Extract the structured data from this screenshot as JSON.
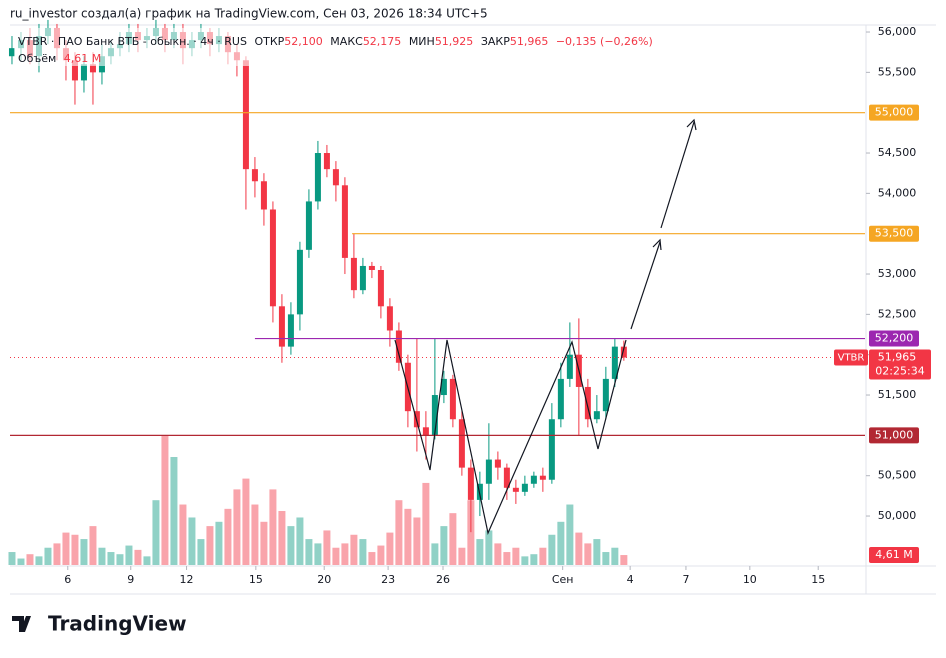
{
  "chart_data": {
    "type": "candlestick",
    "title": "ru_investor создал(а) график на TradingView.com, Сен 03, 2026 18:34 UTC+5",
    "legend": {
      "symbol": "VTBR · ПАО Банк ВТБ - обыкн. · 4ч · RUS",
      "fields": [
        {
          "name": "ОТКР",
          "value": "52,100"
        },
        {
          "name": "МАКС",
          "value": "52,175"
        },
        {
          "name": "МИН",
          "value": "51,925"
        },
        {
          "name": "ЗАКР",
          "value": "51,965"
        }
      ],
      "change": "−0,135 (−0,26%)",
      "volume_name": "Объём",
      "volume_value": "4,61 M"
    },
    "brand": "TradingView",
    "up_color": "#089981",
    "down_color": "#f23645",
    "xlim": [
      -0.22,
      94.8
    ],
    "xticks": [
      {
        "value": 6.2,
        "label": "6"
      },
      {
        "value": 13.2,
        "label": "9"
      },
      {
        "value": 19.4,
        "label": "12"
      },
      {
        "value": 27.1,
        "label": "15"
      },
      {
        "value": 34.7,
        "label": "20"
      },
      {
        "value": 41.8,
        "label": "23"
      },
      {
        "value": 47.9,
        "label": "26"
      },
      {
        "value": 61.2,
        "label": "Сен"
      },
      {
        "value": 68.7,
        "label": "4"
      },
      {
        "value": 74.9,
        "label": "7"
      },
      {
        "value": 82,
        "label": "10"
      },
      {
        "value": 89.6,
        "label": "15"
      }
    ],
    "ylim": [
      49393,
      56087
    ],
    "yticks": [
      {
        "value": 50000,
        "label": "50,000"
      },
      {
        "value": 50500,
        "label": "50,500"
      },
      {
        "value": 51500,
        "label": "51,500"
      },
      {
        "value": 52000,
        "label": "52,000"
      },
      {
        "value": 52500,
        "label": "52,500"
      },
      {
        "value": 53000,
        "label": "53,000"
      },
      {
        "value": 54000,
        "label": "54,000"
      },
      {
        "value": 54500,
        "label": "54,500"
      },
      {
        "value": 55500,
        "label": "55,500"
      },
      {
        "value": 56000,
        "label": "56,000"
      }
    ],
    "open": [
      55700,
      55800,
      55900,
      55700,
      55950,
      56050,
      55800,
      55650,
      55400,
      55600,
      55500,
      55700,
      55800,
      55850,
      56000,
      55900,
      55950,
      56050,
      55900,
      56000,
      55800,
      55900,
      56000,
      55850,
      55950,
      55750,
      55650,
      54300,
      54150,
      53800,
      52600,
      52100,
      52500,
      53300,
      53900,
      54500,
      54300,
      54100,
      53200,
      52800,
      53100,
      53050,
      52600,
      52300,
      51900,
      51300,
      51100,
      51000,
      51500,
      51700,
      51200,
      50600,
      50200,
      50400,
      50700,
      50600,
      50350,
      50300,
      50400,
      50500,
      50450,
      51200,
      51700,
      52000,
      51600,
      51200,
      51300,
      51700,
      52100
    ],
    "high": [
      55950,
      56000,
      56050,
      56100,
      56150,
      56100,
      55900,
      55750,
      55700,
      55750,
      55850,
      55900,
      56000,
      56100,
      56100,
      56050,
      56150,
      56100,
      56100,
      56100,
      56000,
      56100,
      56050,
      56050,
      56000,
      55850,
      55700,
      54450,
      54250,
      53900,
      52750,
      52650,
      53400,
      54050,
      54650,
      54600,
      54400,
      54200,
      53500,
      53200,
      53150,
      53100,
      52700,
      52400,
      52000,
      52200,
      51300,
      52200,
      51800,
      51750,
      51300,
      50700,
      50550,
      51150,
      50800,
      50650,
      50450,
      50500,
      50550,
      50600,
      51400,
      51900,
      52400,
      52450,
      51700,
      51500,
      51850,
      52200,
      52175
    ],
    "low": [
      55600,
      55650,
      55600,
      55500,
      55850,
      55650,
      55400,
      55100,
      55250,
      55100,
      55350,
      55600,
      55700,
      55750,
      55750,
      55800,
      55850,
      55750,
      55800,
      55600,
      55700,
      55800,
      55700,
      55750,
      55600,
      55450,
      53800,
      53950,
      53600,
      52400,
      51900,
      52000,
      52300,
      53200,
      53800,
      54200,
      53900,
      53000,
      52700,
      52750,
      52950,
      52450,
      52100,
      51800,
      51100,
      50800,
      50700,
      50950,
      51400,
      51100,
      50500,
      49800,
      50000,
      50200,
      50450,
      50200,
      50150,
      50250,
      50350,
      50300,
      50400,
      51100,
      51600,
      51000,
      51100,
      51150,
      51200,
      51600,
      51925
    ],
    "close": [
      55800,
      55900,
      55700,
      55950,
      56050,
      55800,
      55650,
      55400,
      55600,
      55500,
      55700,
      55800,
      55850,
      56000,
      55900,
      55950,
      56050,
      55900,
      56000,
      55800,
      55900,
      56000,
      55850,
      55950,
      55750,
      55650,
      54300,
      54150,
      53800,
      52600,
      52100,
      52500,
      53300,
      53900,
      54500,
      54300,
      54100,
      53200,
      52800,
      53100,
      53050,
      52600,
      52300,
      51900,
      51300,
      51100,
      51000,
      51500,
      51700,
      51200,
      50600,
      50200,
      50400,
      50700,
      50600,
      50350,
      50300,
      50400,
      50500,
      50450,
      51200,
      51700,
      52000,
      51600,
      51200,
      51300,
      51700,
      52100,
      51965
    ],
    "volume": [
      6,
      3,
      5,
      4,
      8,
      10,
      15,
      14,
      12,
      18,
      8,
      6,
      5,
      9,
      7,
      4,
      30,
      60,
      50,
      28,
      22,
      12,
      18,
      20,
      26,
      35,
      40,
      28,
      20,
      35,
      25,
      18,
      22,
      12,
      10,
      16,
      8,
      10,
      14,
      12,
      6,
      9,
      15,
      30,
      26,
      22,
      38,
      10,
      18,
      24,
      8,
      30,
      12,
      16,
      10,
      6,
      8,
      4,
      5,
      8,
      14,
      20,
      28,
      15,
      10,
      12,
      6,
      8,
      4.61
    ],
    "vlim": [
      0,
      250
    ],
    "volume_tag_label": "4,61 M",
    "last_price_symbol": "VTBR",
    "last_price_label": "51,965",
    "countdown": "02:25:34",
    "price_lines": [
      {
        "value": 55000,
        "label": "55,000",
        "color": "#f5a623"
      },
      {
        "value": 53500,
        "label": "53,500",
        "color": "#f5a623",
        "from": 37.8
      },
      {
        "value": 52200,
        "label": "52,200",
        "color": "#9c27b0",
        "from": 27
      },
      {
        "value": 51000,
        "label": "51,000",
        "color": "#b22833"
      }
    ]
  }
}
